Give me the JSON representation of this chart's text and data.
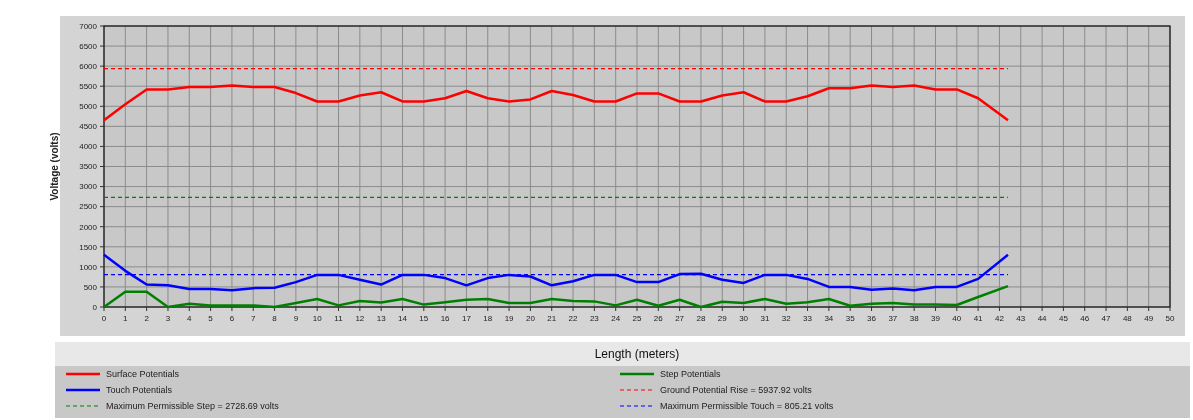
{
  "chart_data": {
    "type": "line",
    "xlabel": "Length (meters)",
    "ylabel": "Voltage (volts)",
    "xlim": [
      0,
      50
    ],
    "xticks": [
      0,
      1,
      2,
      3,
      4,
      5,
      6,
      7,
      8,
      9,
      10,
      11,
      12,
      13,
      14,
      15,
      16,
      17,
      18,
      19,
      20,
      21,
      22,
      23,
      24,
      25,
      26,
      27,
      28,
      29,
      30,
      31,
      32,
      33,
      34,
      35,
      36,
      37,
      38,
      39,
      40,
      41,
      42,
      43,
      44,
      45,
      46,
      47,
      48,
      49,
      50
    ],
    "ylim": [
      0,
      7000
    ],
    "yticks": [
      0,
      500,
      1000,
      1500,
      2000,
      2500,
      3000,
      3500,
      4000,
      4500,
      5000,
      5500,
      6000,
      6500,
      7000
    ],
    "grid": true,
    "legend": "bottom",
    "line_style": "solid",
    "marker": "none",
    "x": [
      0,
      1,
      2,
      3,
      4,
      5,
      6,
      7,
      8,
      9,
      10,
      11,
      12,
      13,
      14,
      15,
      16,
      17,
      18,
      19,
      20,
      21,
      22,
      23,
      24,
      25,
      26,
      27,
      28,
      29,
      30,
      31,
      32,
      33,
      34,
      35,
      36,
      37,
      38,
      39,
      40,
      41,
      42.4
    ],
    "series": [
      {
        "name": "Surface Potentials",
        "color": "#ff0000",
        "values": [
          4650,
          5050,
          5420,
          5420,
          5480,
          5480,
          5520,
          5480,
          5480,
          5330,
          5120,
          5120,
          5270,
          5350,
          5120,
          5120,
          5200,
          5380,
          5200,
          5120,
          5170,
          5380,
          5280,
          5120,
          5120,
          5320,
          5320,
          5120,
          5120,
          5270,
          5350,
          5120,
          5120,
          5250,
          5450,
          5450,
          5520,
          5480,
          5520,
          5420,
          5420,
          5200,
          4650
        ]
      },
      {
        "name": "Step Potentials",
        "color": "#008000",
        "values": [
          0,
          380,
          380,
          0,
          80,
          40,
          40,
          40,
          0,
          100,
          200,
          40,
          150,
          110,
          200,
          60,
          120,
          180,
          200,
          100,
          100,
          200,
          150,
          140,
          40,
          180,
          30,
          180,
          0,
          130,
          100,
          200,
          80,
          120,
          200,
          30,
          80,
          100,
          60,
          60,
          50,
          250,
          520
        ]
      },
      {
        "name": "Touch Potentials",
        "color": "#0000ff",
        "values": [
          1300,
          900,
          560,
          540,
          450,
          450,
          420,
          470,
          480,
          620,
          800,
          800,
          680,
          560,
          800,
          800,
          720,
          540,
          720,
          800,
          760,
          540,
          640,
          800,
          800,
          620,
          620,
          820,
          830,
          680,
          600,
          800,
          800,
          700,
          500,
          500,
          430,
          460,
          420,
          500,
          500,
          700,
          1300
        ]
      }
    ],
    "ref_lines": [
      {
        "axis": "y",
        "value": 5937.92,
        "label": "Ground Potential Rise = 5937.92 volts",
        "color": "#ff0000",
        "line_style": "dashed"
      },
      {
        "axis": "y",
        "value": 2728.69,
        "label": "Maximum Permissible Step = 2728.69 volts",
        "color": "#008000",
        "line_style": "dashed"
      },
      {
        "axis": "y",
        "value": 805.21,
        "label": "Maximum Permissible Touch = 805.21 volts",
        "color": "#0000ff",
        "line_style": "dashed"
      }
    ]
  }
}
